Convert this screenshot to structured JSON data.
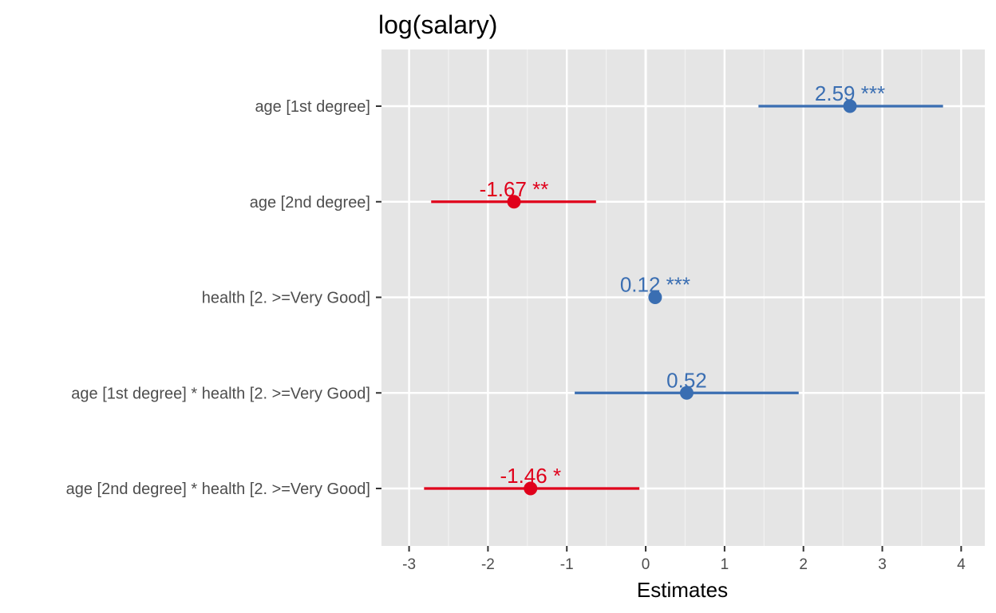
{
  "chart_data": {
    "type": "forest",
    "title": "log(salary)",
    "xlabel": "Estimates",
    "ylabel": "",
    "xlim": [
      -3.35,
      4.3
    ],
    "x_ticks": [
      -3,
      -2,
      -1,
      0,
      1,
      2,
      3,
      4
    ],
    "x_tick_labels": [
      "-3",
      "-2",
      "-1",
      "0",
      "1",
      "2",
      "3",
      "4"
    ],
    "grid": true,
    "reference_line": 0,
    "colors": {
      "positive": "#3a6eb2",
      "negative": "#e0001b",
      "panel": "#e5e5e5",
      "grid": "#ffffff"
    },
    "terms": [
      {
        "label": "age [1st degree]",
        "estimate": 2.59,
        "ci_low": 1.43,
        "ci_high": 3.77,
        "value_label": "2.59 ***"
      },
      {
        "label": "age [2nd degree]",
        "estimate": -1.67,
        "ci_low": -2.72,
        "ci_high": -0.63,
        "value_label": "-1.67 **"
      },
      {
        "label": "health [2. >=Very Good]",
        "estimate": 0.12,
        "ci_low": 0.08,
        "ci_high": 0.16,
        "value_label": "0.12 ***"
      },
      {
        "label": "age [1st degree] * health [2. >=Very Good]",
        "estimate": 0.52,
        "ci_low": -0.9,
        "ci_high": 1.94,
        "value_label": "0.52"
      },
      {
        "label": "age [2nd degree] * health [2. >=Very Good]",
        "estimate": -1.46,
        "ci_low": -2.81,
        "ci_high": -0.08,
        "value_label": "-1.46 *"
      }
    ]
  }
}
